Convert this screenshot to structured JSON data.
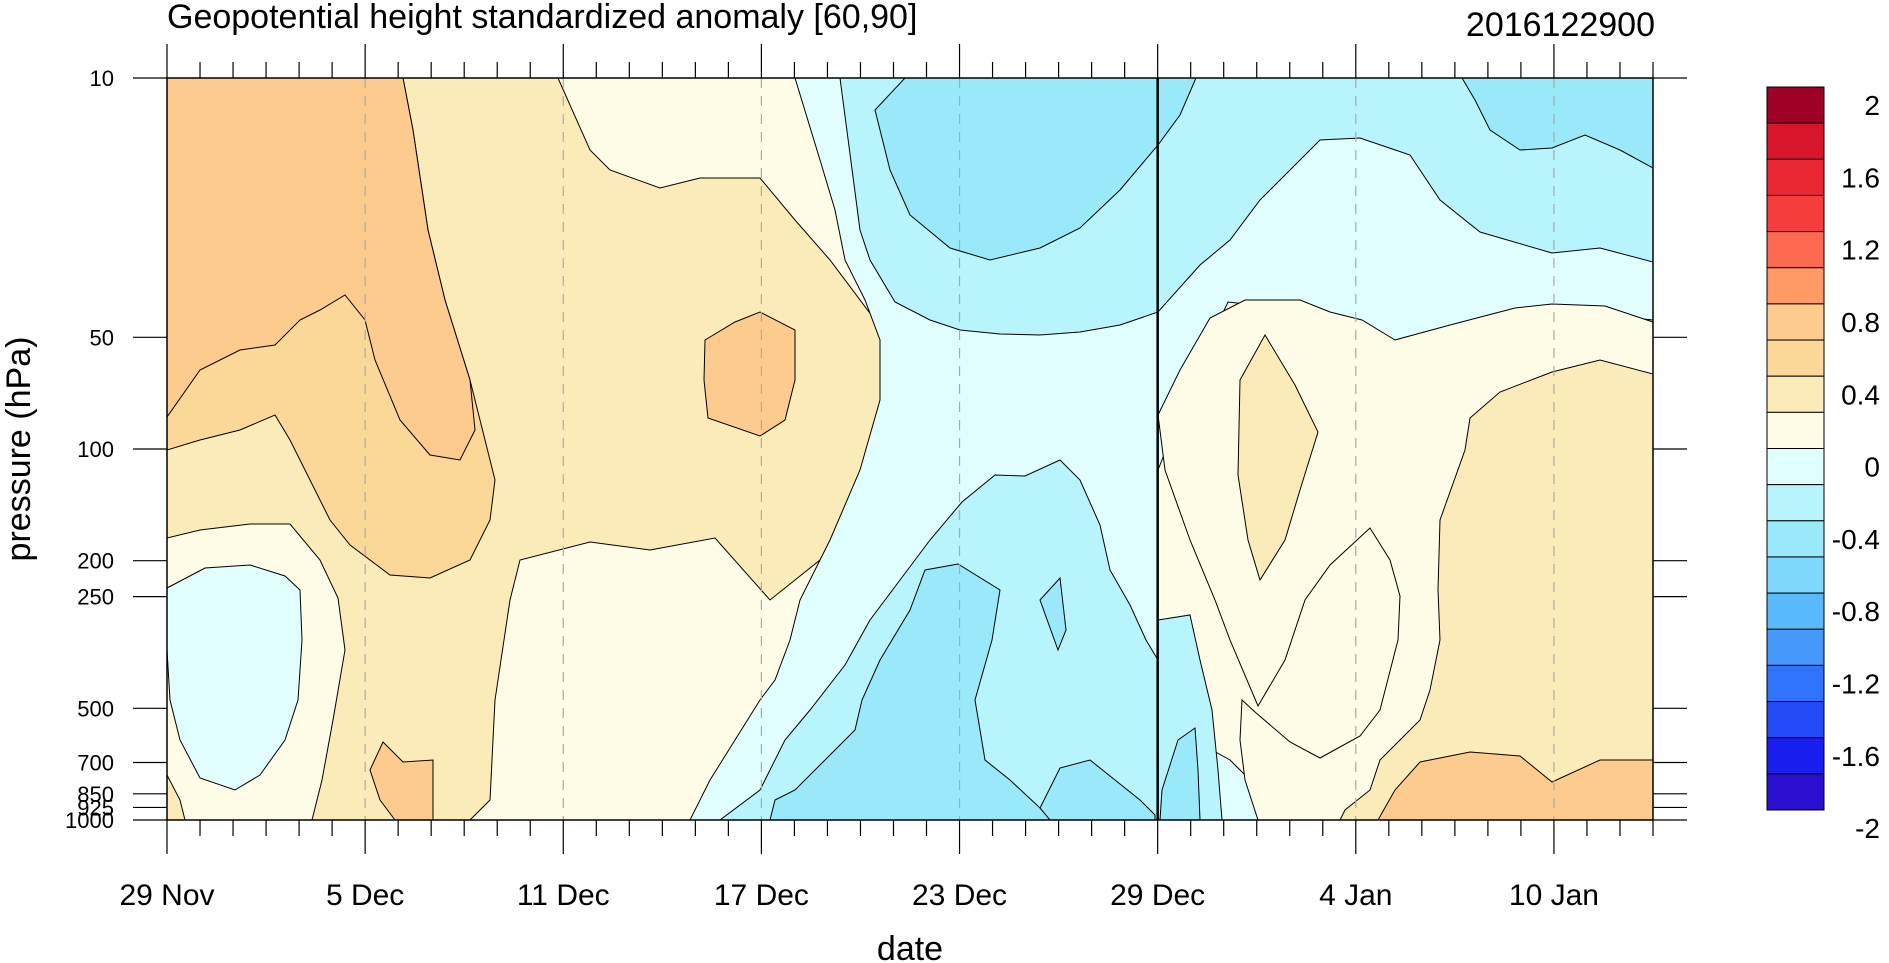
{
  "chart_data": {
    "type": "heatmap",
    "title": "Geopotential height standardized anomaly [60,90]",
    "date_stamp": "2016122900",
    "xlabel": "date",
    "ylabel": "pressure (hPa)",
    "x_tick_labels": [
      "29 Nov",
      "5 Dec",
      "11 Dec",
      "17 Dec",
      "23 Dec",
      "29 Dec",
      "4 Jan",
      "10 Jan"
    ],
    "y_tick_labels": [
      "10",
      "50",
      "100",
      "200",
      "250",
      "500",
      "700",
      "850",
      "925",
      "1000"
    ],
    "y_log_scale": true,
    "vertical_marker": "29 Dec",
    "levels": [
      -2,
      -1.8,
      -1.6,
      -1.4,
      -1.2,
      -1,
      -0.8,
      -0.6,
      -0.4,
      -0.2,
      0,
      0.2,
      0.4,
      0.6,
      0.8,
      1,
      1.2,
      1.4,
      1.6,
      1.8,
      2
    ],
    "colorbar_labels": [
      "2",
      "1.6",
      "1.2",
      "0.8",
      "0.4",
      "0",
      "-0.4",
      "-0.8",
      "-1.2",
      "-1.6",
      "-2"
    ],
    "colorbar_colors": [
      "#9e0026",
      "#d7152b",
      "#ea2833",
      "#f53d3d",
      "#fe6a51",
      "#ff9a66",
      "#fecb8e",
      "#fbd798",
      "#fbebb8",
      "#fefbe6",
      "#e1feff",
      "#b8f4fb",
      "#99e9fb",
      "#7dd8fb",
      "#59b9fb",
      "#4499fb",
      "#2f72fb",
      "#2449f8",
      "#1a1ff0",
      "#2b0fd1"
    ]
  }
}
